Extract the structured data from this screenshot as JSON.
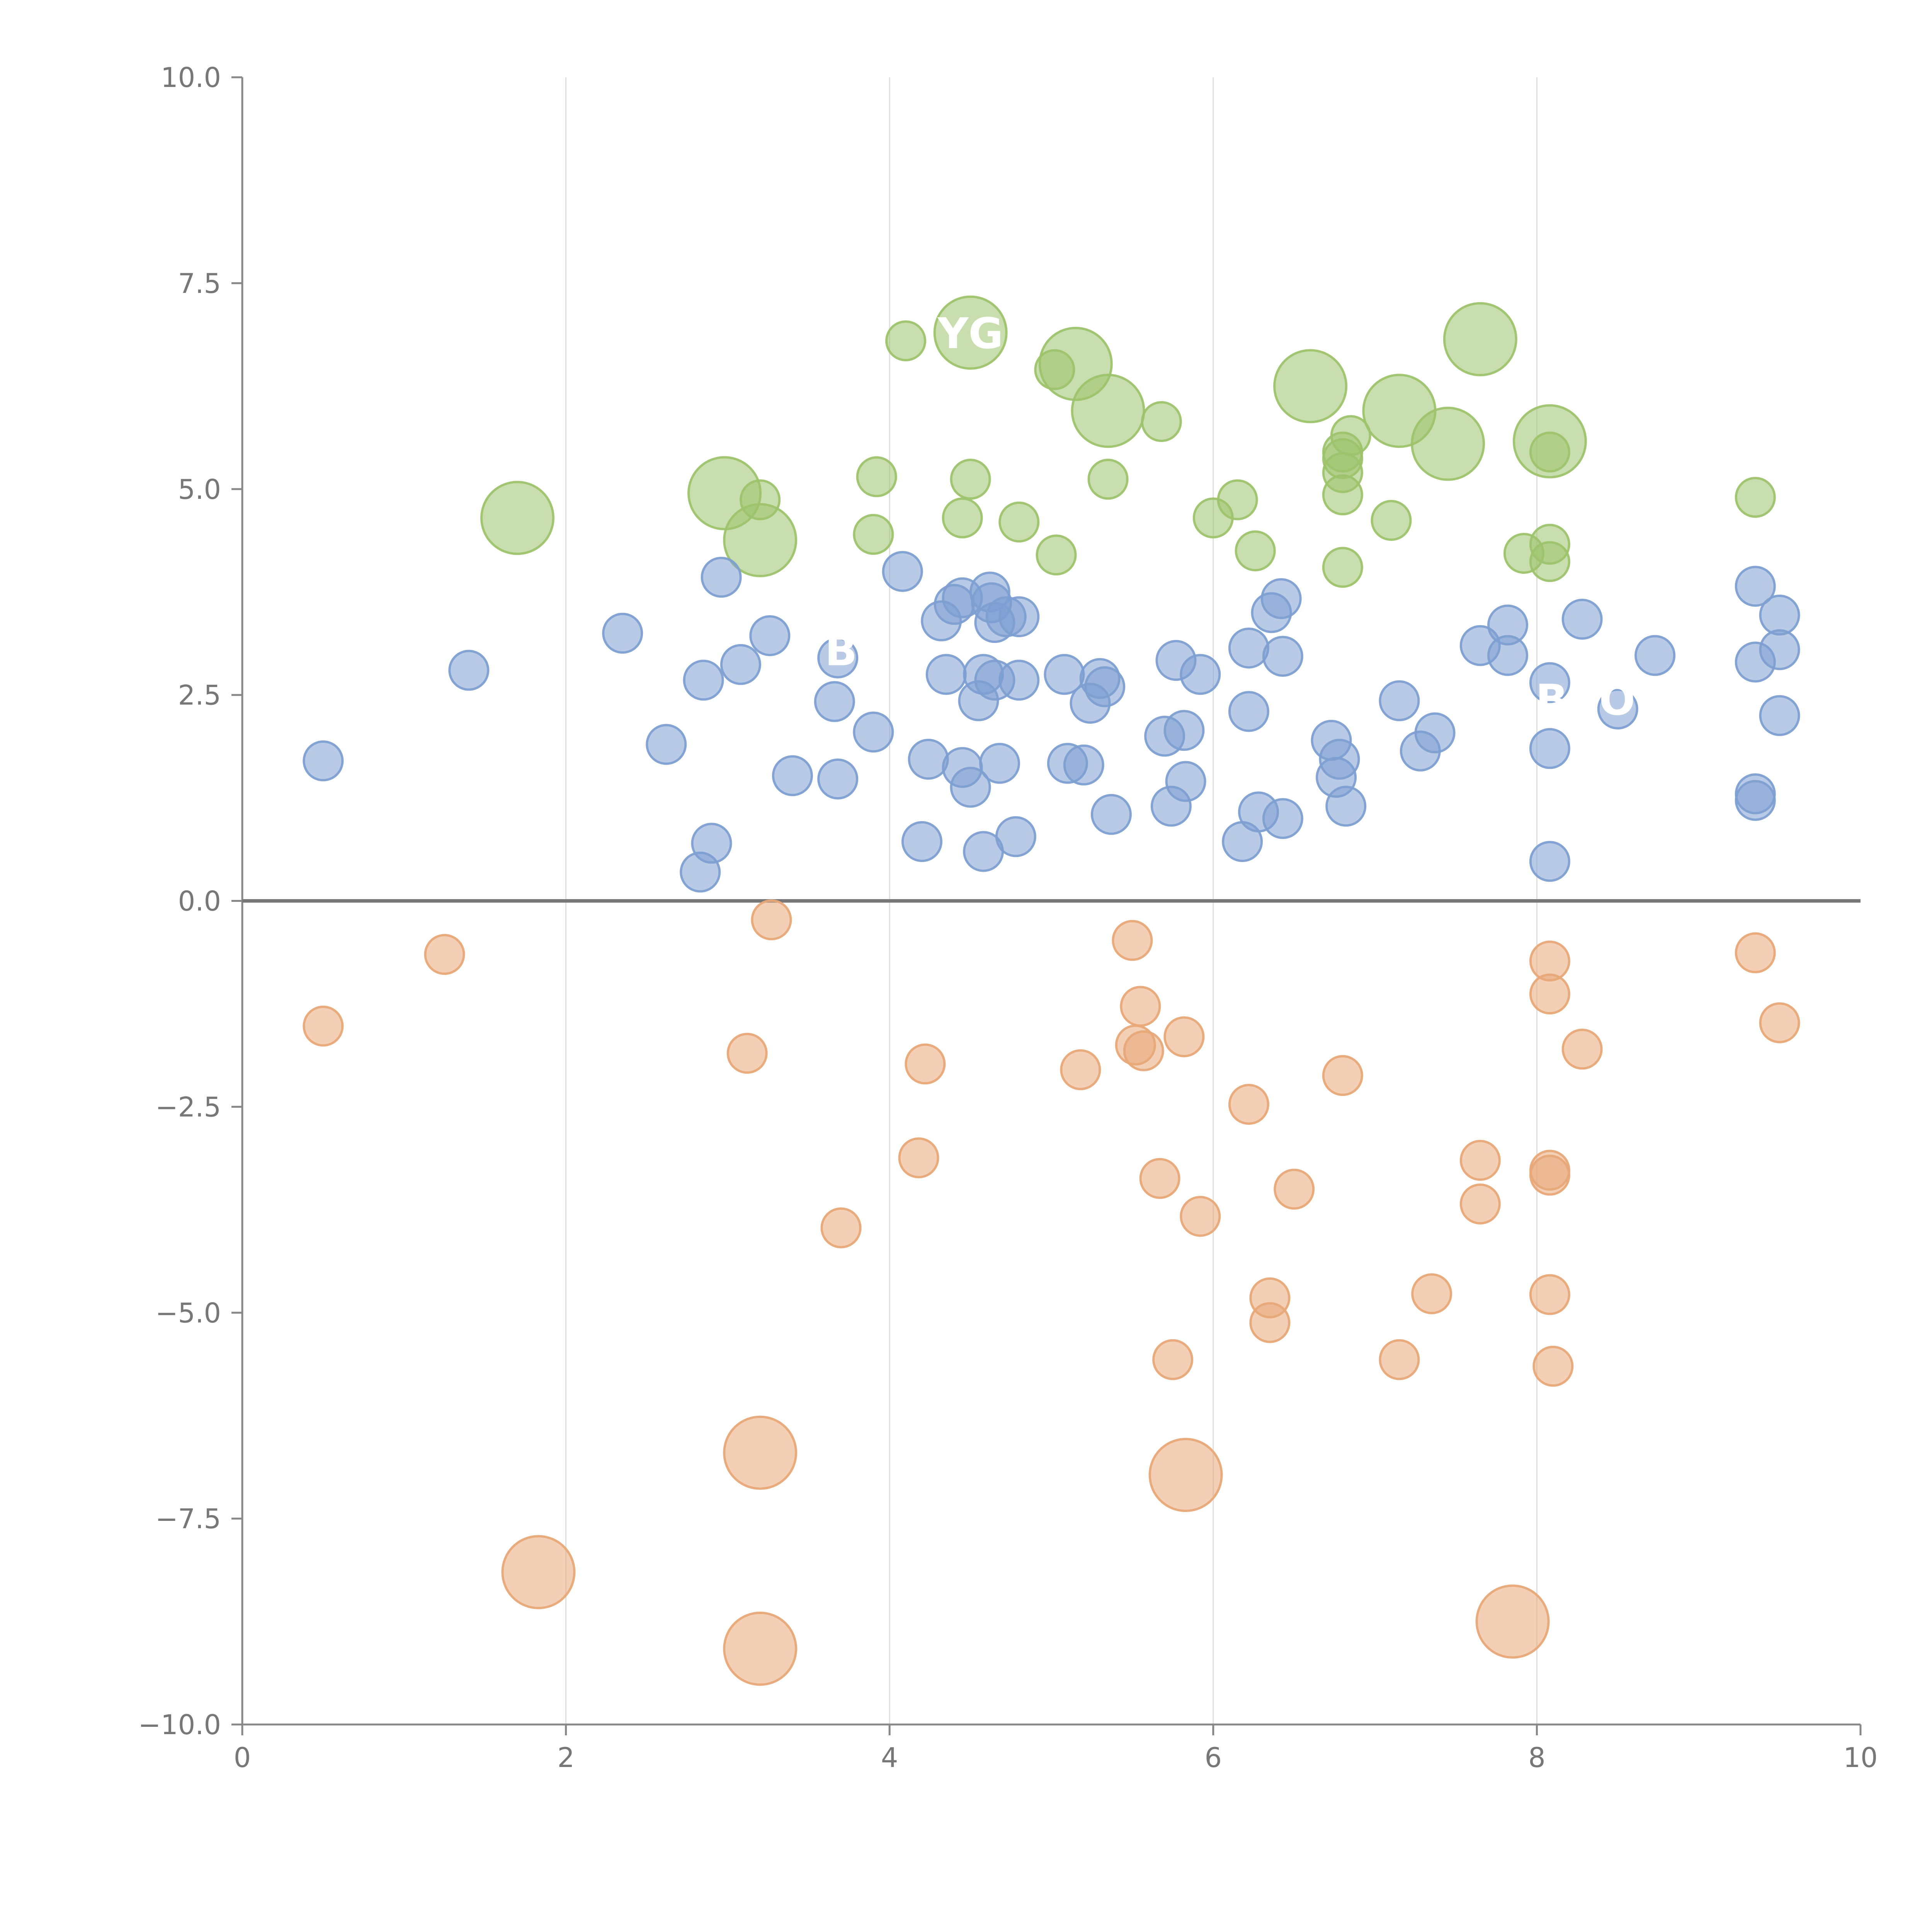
{
  "chart_data": {
    "type": "scatter",
    "title": "",
    "xlabel": "",
    "ylabel": "",
    "xlim": [
      0,
      10
    ],
    "ylim": [
      -10,
      10
    ],
    "x_ticks": [
      0,
      2,
      4,
      6,
      8,
      10
    ],
    "x_tick_labels": [
      "0",
      "2",
      "4",
      "6",
      "8",
      "10"
    ],
    "y_ticks": [
      10,
      7.5,
      5,
      2.5,
      0,
      -2.5,
      -5,
      -7.5,
      -10
    ],
    "y_tick_labels": [
      "10.0",
      "7.5",
      "5.0",
      "2.5",
      "0.0",
      "−2.5",
      "−5.0",
      "−7.5",
      "−10.0"
    ],
    "grid": "vertical",
    "zero_line": true,
    "annotations": [
      {
        "text": "YG",
        "x": 4.5,
        "y": 6.9,
        "series": "green"
      },
      {
        "text": "B",
        "x": 3.7,
        "y": 3.05,
        "series": "blue"
      },
      {
        "text": "BCO",
        "x": 8.3,
        "y": 2.45,
        "series": "blue"
      }
    ],
    "series": [
      {
        "name": "green",
        "color": "#9dc36b",
        "points": [
          [
            1.7,
            4.65,
            2
          ],
          [
            2.98,
            4.95,
            2
          ],
          [
            3.2,
            4.38,
            2
          ],
          [
            3.2,
            4.87,
            1
          ],
          [
            3.9,
            4.45,
            1
          ],
          [
            3.92,
            5.15,
            1
          ],
          [
            4.1,
            6.8,
            1
          ],
          [
            4.45,
            4.65,
            1
          ],
          [
            4.5,
            5.12,
            1
          ],
          [
            4.5,
            6.9,
            2
          ],
          [
            4.8,
            4.6,
            1
          ],
          [
            5.02,
            6.45,
            1
          ],
          [
            5.03,
            4.2,
            1
          ],
          [
            5.15,
            6.52,
            2
          ],
          [
            5.35,
            5.95,
            2
          ],
          [
            5.35,
            5.12,
            1
          ],
          [
            5.68,
            5.82,
            1
          ],
          [
            6.0,
            4.65,
            1
          ],
          [
            6.15,
            4.87,
            1
          ],
          [
            6.26,
            4.25,
            1
          ],
          [
            6.6,
            6.25,
            2
          ],
          [
            6.8,
            4.05,
            1
          ],
          [
            6.8,
            4.93,
            1
          ],
          [
            6.8,
            5.2,
            1
          ],
          [
            6.8,
            5.37,
            1
          ],
          [
            6.8,
            5.45,
            1
          ],
          [
            6.85,
            5.65,
            1
          ],
          [
            7.1,
            4.62,
            1
          ],
          [
            7.15,
            5.95,
            2
          ],
          [
            7.45,
            5.55,
            2
          ],
          [
            7.65,
            6.82,
            2
          ],
          [
            7.92,
            4.22,
            1
          ],
          [
            8.08,
            5.58,
            2
          ],
          [
            8.08,
            5.45,
            1
          ],
          [
            8.08,
            4.33,
            1
          ],
          [
            8.08,
            4.12,
            1
          ],
          [
            9.35,
            4.9,
            1
          ]
        ]
      },
      {
        "name": "blue",
        "color": "#7d9fd1",
        "points": [
          [
            0.5,
            1.7,
            1
          ],
          [
            1.4,
            2.8,
            1
          ],
          [
            2.35,
            3.25,
            1
          ],
          [
            2.62,
            1.9,
            1
          ],
          [
            2.83,
            0.35,
            1
          ],
          [
            2.85,
            2.68,
            1
          ],
          [
            2.9,
            0.7,
            1
          ],
          [
            2.96,
            3.93,
            1
          ],
          [
            3.08,
            2.87,
            1
          ],
          [
            3.26,
            3.22,
            1
          ],
          [
            3.4,
            1.52,
            1
          ],
          [
            3.68,
            2.95,
            1
          ],
          [
            3.66,
            2.42,
            1
          ],
          [
            3.68,
            1.48,
            1
          ],
          [
            3.9,
            2.05,
            1
          ],
          [
            4.08,
            4.0,
            1
          ],
          [
            4.2,
            0.72,
            1
          ],
          [
            4.24,
            1.72,
            1
          ],
          [
            4.32,
            3.4,
            1
          ],
          [
            4.35,
            2.75,
            1
          ],
          [
            4.4,
            3.6,
            1
          ],
          [
            4.45,
            3.68,
            1
          ],
          [
            4.45,
            1.62,
            1
          ],
          [
            4.5,
            1.38,
            1
          ],
          [
            4.55,
            2.43,
            1
          ],
          [
            4.58,
            2.75,
            1
          ],
          [
            4.58,
            0.6,
            1
          ],
          [
            4.62,
            3.75,
            1
          ],
          [
            4.63,
            3.62,
            1
          ],
          [
            4.65,
            3.38,
            1
          ],
          [
            4.65,
            2.68,
            1
          ],
          [
            4.68,
            1.67,
            1
          ],
          [
            4.72,
            3.45,
            1
          ],
          [
            4.78,
            0.78,
            1
          ],
          [
            4.8,
            3.45,
            1
          ],
          [
            4.8,
            2.68,
            1
          ],
          [
            5.08,
            2.75,
            1
          ],
          [
            5.1,
            1.67,
            1
          ],
          [
            5.2,
            1.65,
            1
          ],
          [
            5.24,
            2.4,
            1
          ],
          [
            5.3,
            2.7,
            1
          ],
          [
            5.33,
            2.6,
            1
          ],
          [
            5.37,
            1.05,
            1
          ],
          [
            5.7,
            2.0,
            1
          ],
          [
            5.74,
            1.15,
            1
          ],
          [
            5.77,
            2.92,
            1
          ],
          [
            5.82,
            2.07,
            1
          ],
          [
            5.83,
            1.45,
            1
          ],
          [
            5.92,
            2.75,
            1
          ],
          [
            6.18,
            0.72,
            1
          ],
          [
            6.22,
            3.07,
            1
          ],
          [
            6.22,
            2.3,
            1
          ],
          [
            6.28,
            1.08,
            1
          ],
          [
            6.36,
            3.5,
            1
          ],
          [
            6.42,
            3.67,
            1
          ],
          [
            6.43,
            2.97,
            1
          ],
          [
            6.43,
            1.0,
            1
          ],
          [
            6.73,
            1.95,
            1
          ],
          [
            6.76,
            1.5,
            1
          ],
          [
            6.78,
            1.72,
            1
          ],
          [
            6.82,
            1.15,
            1
          ],
          [
            7.15,
            2.43,
            1
          ],
          [
            7.28,
            1.82,
            1
          ],
          [
            7.37,
            2.04,
            1
          ],
          [
            7.65,
            3.1,
            1
          ],
          [
            7.82,
            3.35,
            1
          ],
          [
            7.82,
            2.98,
            1
          ],
          [
            8.08,
            2.65,
            1
          ],
          [
            8.08,
            1.85,
            1
          ],
          [
            8.08,
            0.48,
            1
          ],
          [
            8.28,
            3.42,
            1
          ],
          [
            8.5,
            2.33,
            1
          ],
          [
            8.73,
            2.98,
            1
          ],
          [
            9.35,
            3.82,
            1
          ],
          [
            9.35,
            2.9,
            1
          ],
          [
            9.35,
            1.3,
            1
          ],
          [
            9.35,
            1.22,
            1
          ],
          [
            9.5,
            3.47,
            1
          ],
          [
            9.5,
            3.05,
            1
          ],
          [
            9.5,
            2.25,
            1
          ]
        ]
      },
      {
        "name": "orange",
        "color": "#e8a878",
        "points": [
          [
            0.5,
            -1.52,
            1
          ],
          [
            1.25,
            -0.65,
            1
          ],
          [
            1.83,
            -8.15,
            2
          ],
          [
            3.12,
            -1.85,
            1
          ],
          [
            3.2,
            -6.7,
            2
          ],
          [
            3.2,
            -9.08,
            2
          ],
          [
            3.27,
            -0.23,
            1
          ],
          [
            3.7,
            -3.97,
            1
          ],
          [
            4.18,
            -3.12,
            1
          ],
          [
            4.22,
            -1.98,
            1
          ],
          [
            5.18,
            -2.05,
            1
          ],
          [
            5.5,
            -0.48,
            1
          ],
          [
            5.52,
            -1.75,
            1
          ],
          [
            5.55,
            -1.28,
            1
          ],
          [
            5.57,
            -1.82,
            1
          ],
          [
            5.67,
            -3.37,
            1
          ],
          [
            5.75,
            -5.57,
            1
          ],
          [
            5.82,
            -1.65,
            1
          ],
          [
            5.83,
            -6.97,
            2
          ],
          [
            5.92,
            -3.83,
            1
          ],
          [
            6.22,
            -2.47,
            1
          ],
          [
            6.35,
            -4.82,
            1
          ],
          [
            6.35,
            -5.12,
            1
          ],
          [
            6.5,
            -3.5,
            1
          ],
          [
            6.8,
            -2.12,
            1
          ],
          [
            7.15,
            -5.57,
            1
          ],
          [
            7.35,
            -4.77,
            1
          ],
          [
            7.65,
            -3.15,
            1
          ],
          [
            7.65,
            -3.68,
            1
          ],
          [
            7.85,
            -8.75,
            2
          ],
          [
            8.08,
            -0.73,
            1
          ],
          [
            8.08,
            -1.13,
            1
          ],
          [
            8.08,
            -3.27,
            1
          ],
          [
            8.08,
            -3.33,
            1
          ],
          [
            8.08,
            -4.78,
            1
          ],
          [
            8.1,
            -5.65,
            1
          ],
          [
            8.28,
            -1.8,
            1
          ],
          [
            9.35,
            -0.63,
            1
          ],
          [
            9.5,
            -1.48,
            1
          ]
        ]
      }
    ]
  }
}
